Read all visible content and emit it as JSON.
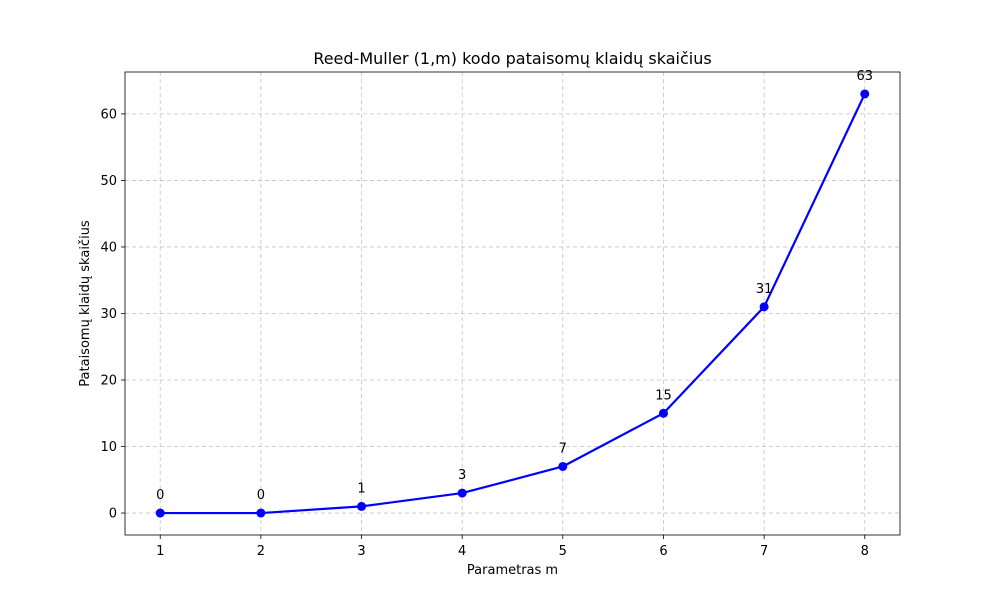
{
  "chart_data": {
    "type": "line",
    "title": "Reed-Muller (1,m) kodo pataisomų klaidų skaičius",
    "xlabel": "Parametras m",
    "ylabel": "Pataisomų klaidų skaičius",
    "x": [
      1,
      2,
      3,
      4,
      5,
      6,
      7,
      8
    ],
    "series": [
      {
        "name": "Pataisomų klaidų skaičius",
        "values": [
          0,
          0,
          1,
          3,
          7,
          15,
          31,
          63
        ],
        "color": "#0000ff",
        "marker": "circle"
      }
    ],
    "data_labels": [
      "0",
      "0",
      "1",
      "3",
      "7",
      "15",
      "31",
      "63"
    ],
    "xticks": [
      "1",
      "2",
      "3",
      "4",
      "5",
      "6",
      "7",
      "8"
    ],
    "yticks": [
      "0",
      "10",
      "20",
      "30",
      "40",
      "50",
      "60"
    ],
    "xlim": [
      0.65,
      8.35
    ],
    "ylim": [
      -3.3,
      66.3
    ],
    "grid": true,
    "colors": {
      "line": "#0000ff",
      "grid": "#b0b0b0",
      "frame": "#000000"
    }
  }
}
